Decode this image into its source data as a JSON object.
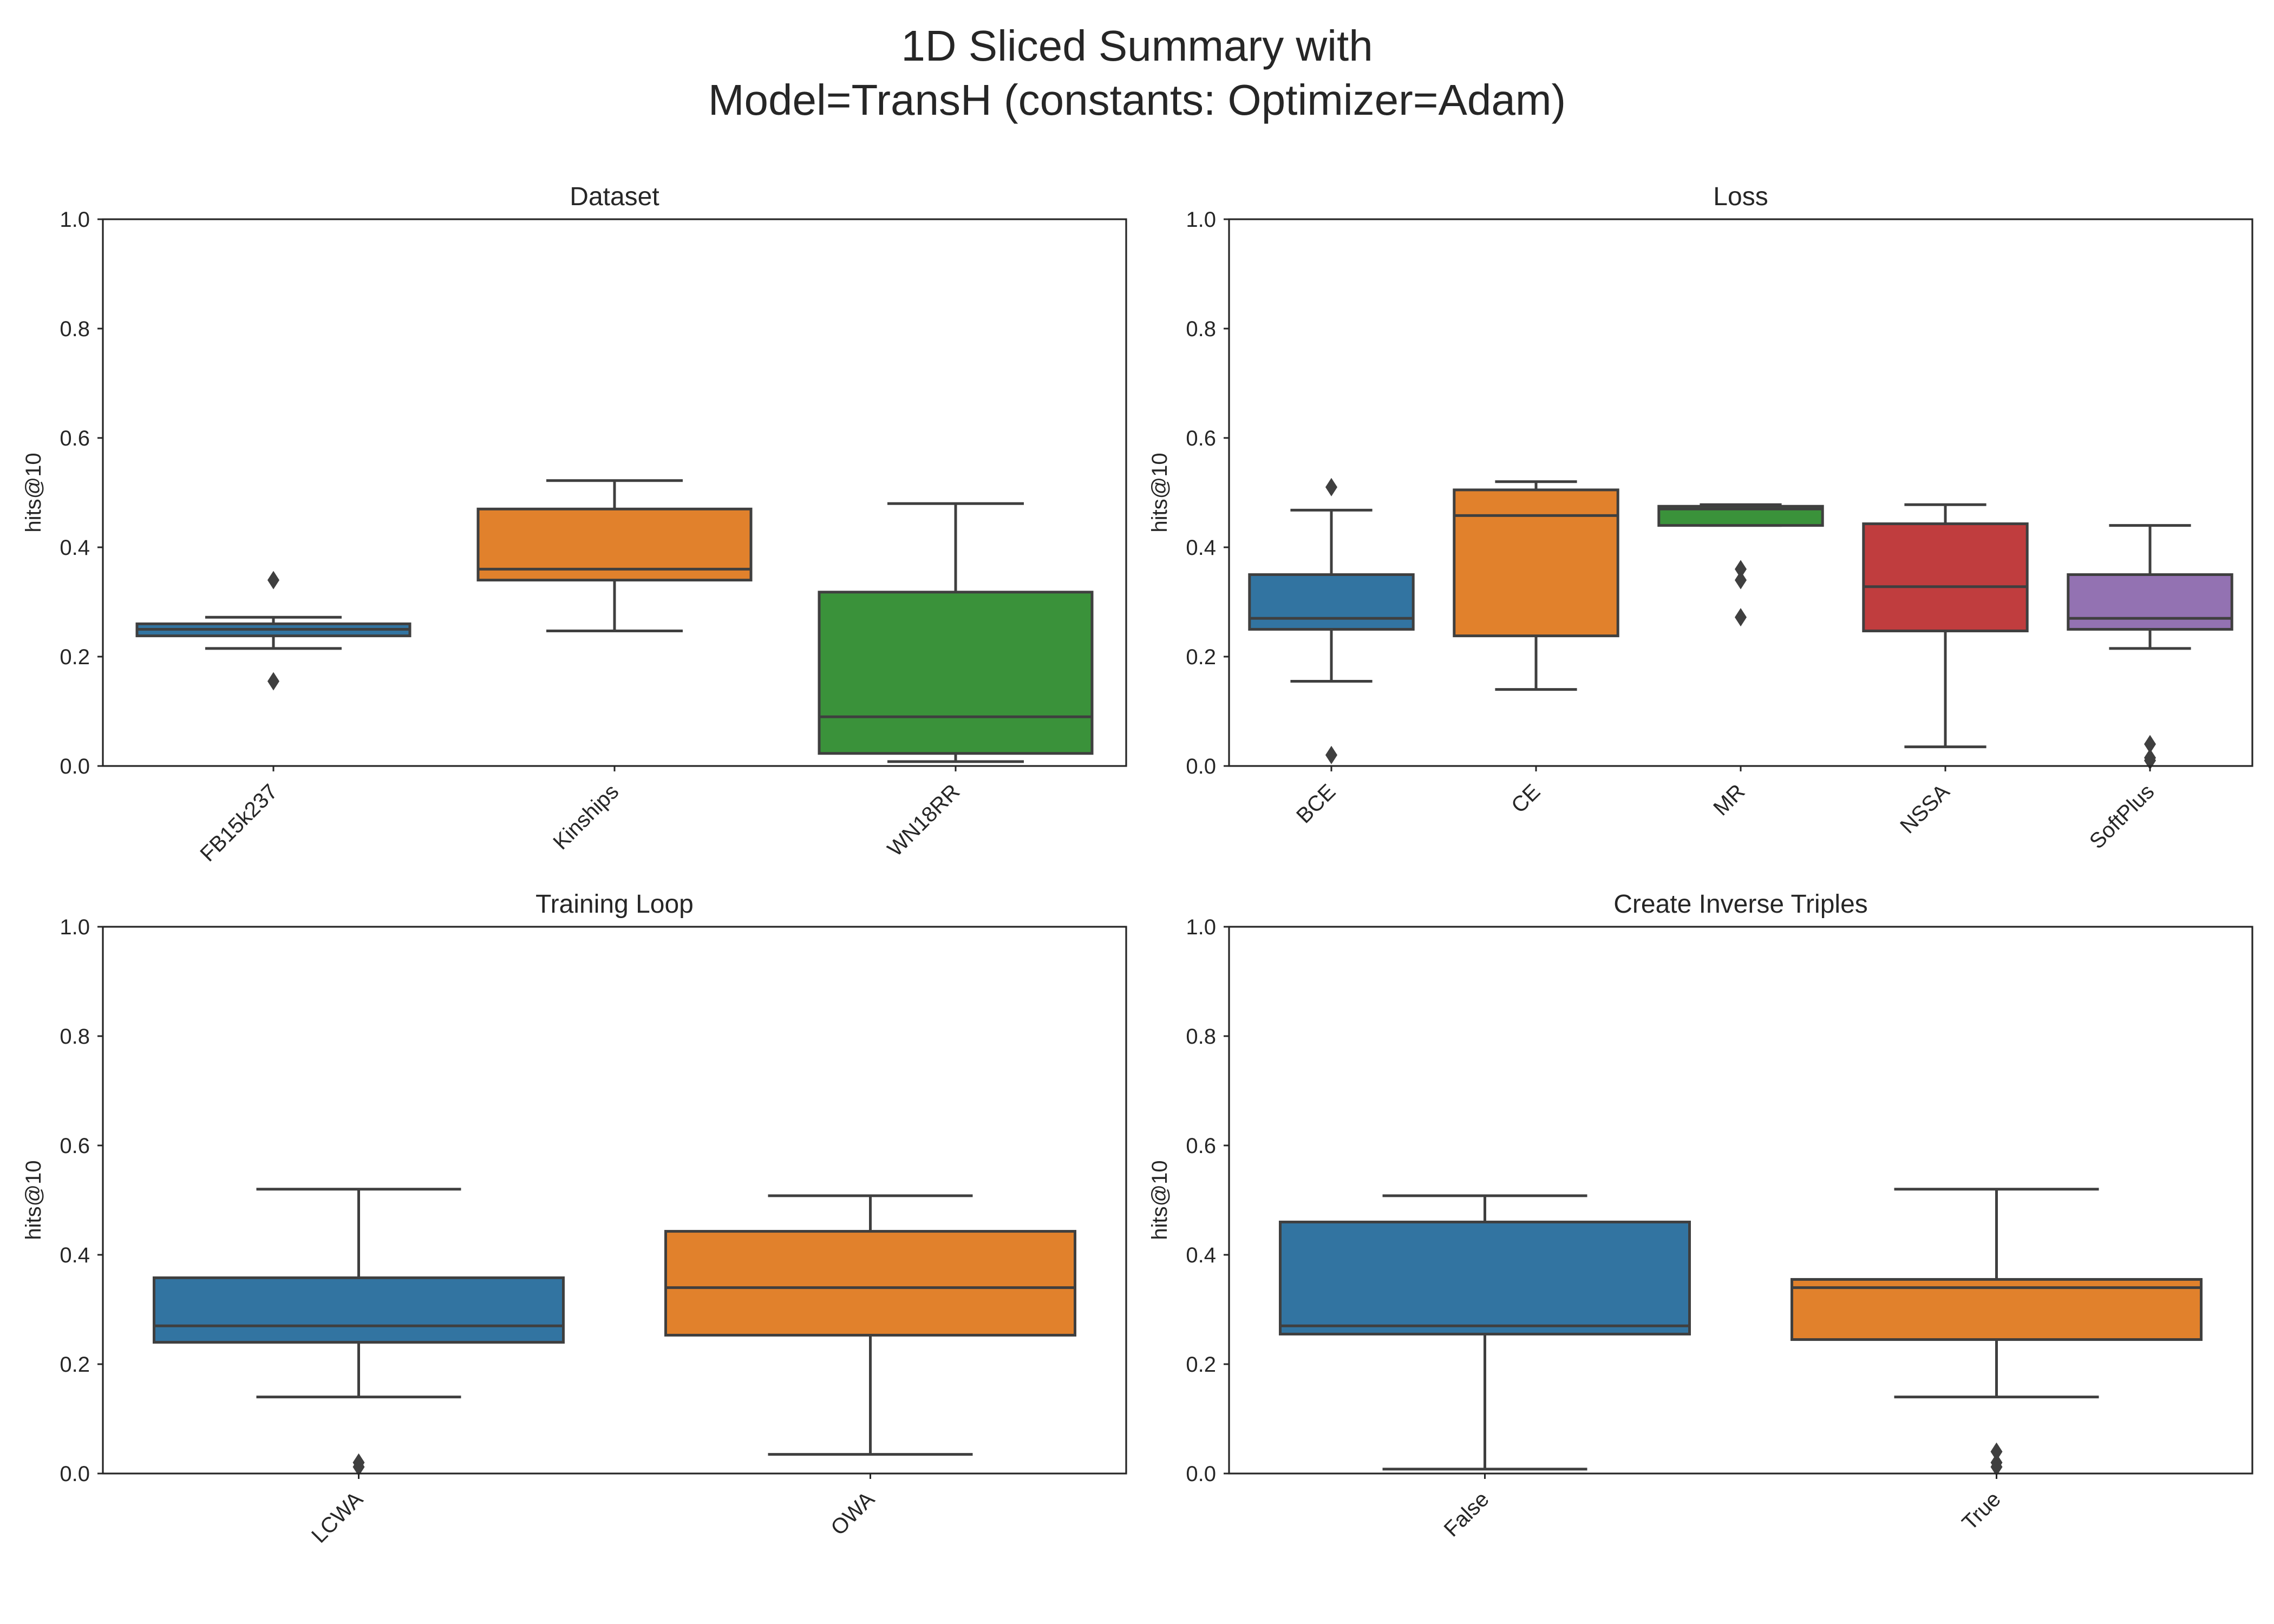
{
  "suptitle": [
    "1D Sliced Summary with",
    "Model=TransH (constants: Optimizer=Adam)"
  ],
  "chart_data": [
    {
      "type": "box",
      "title": "Dataset",
      "xlabel": "",
      "ylabel": "hits@10",
      "ylim": [
        0,
        1
      ],
      "yticks": [
        "0.0",
        "0.2",
        "0.4",
        "0.6",
        "0.8",
        "1.0"
      ],
      "grid": false,
      "categories": [
        "FB15k237",
        "Kinships",
        "WN18RR"
      ],
      "colors": [
        "#3274a1",
        "#e1812c",
        "#3a923a"
      ],
      "boxes": [
        {
          "whislo": 0.215,
          "q1": 0.238,
          "med": 0.25,
          "q3": 0.26,
          "whishi": 0.272,
          "fliers": [
            0.34,
            0.155
          ]
        },
        {
          "whislo": 0.247,
          "q1": 0.34,
          "med": 0.36,
          "q3": 0.47,
          "whishi": 0.522,
          "fliers": []
        },
        {
          "whislo": 0.008,
          "q1": 0.023,
          "med": 0.09,
          "q3": 0.318,
          "whishi": 0.48,
          "fliers": []
        }
      ]
    },
    {
      "type": "box",
      "title": "Loss",
      "xlabel": "",
      "ylabel": "hits@10",
      "ylim": [
        0,
        1
      ],
      "yticks": [
        "0.0",
        "0.2",
        "0.4",
        "0.6",
        "0.8",
        "1.0"
      ],
      "grid": false,
      "categories": [
        "BCE",
        "CE",
        "MR",
        "NSSA",
        "SoftPlus"
      ],
      "colors": [
        "#3274a1",
        "#e1812c",
        "#3a923a",
        "#c03d3e",
        "#9372b2"
      ],
      "boxes": [
        {
          "whislo": 0.155,
          "q1": 0.25,
          "med": 0.27,
          "q3": 0.35,
          "whishi": 0.468,
          "fliers": [
            0.51,
            0.02
          ]
        },
        {
          "whislo": 0.14,
          "q1": 0.238,
          "med": 0.458,
          "q3": 0.505,
          "whishi": 0.52,
          "fliers": []
        },
        {
          "whislo": 0.44,
          "q1": 0.44,
          "med": 0.47,
          "q3": 0.475,
          "whishi": 0.478,
          "fliers": [
            0.36,
            0.34,
            0.272
          ]
        },
        {
          "whislo": 0.035,
          "q1": 0.247,
          "med": 0.328,
          "q3": 0.443,
          "whishi": 0.478,
          "fliers": []
        },
        {
          "whislo": 0.215,
          "q1": 0.25,
          "med": 0.27,
          "q3": 0.35,
          "whishi": 0.44,
          "fliers": [
            0.04,
            0.015,
            0.01
          ]
        }
      ]
    },
    {
      "type": "box",
      "title": "Training Loop",
      "xlabel": "",
      "ylabel": "hits@10",
      "ylim": [
        0,
        1
      ],
      "yticks": [
        "0.0",
        "0.2",
        "0.4",
        "0.6",
        "0.8",
        "1.0"
      ],
      "grid": false,
      "categories": [
        "LCWA",
        "OWA"
      ],
      "colors": [
        "#3274a1",
        "#e1812c"
      ],
      "boxes": [
        {
          "whislo": 0.14,
          "q1": 0.24,
          "med": 0.27,
          "q3": 0.358,
          "whishi": 0.52,
          "fliers": [
            0.02,
            0.012
          ]
        },
        {
          "whislo": 0.035,
          "q1": 0.253,
          "med": 0.34,
          "q3": 0.443,
          "whishi": 0.508,
          "fliers": []
        }
      ]
    },
    {
      "type": "box",
      "title": "Create Inverse Triples",
      "xlabel": "",
      "ylabel": "hits@10",
      "ylim": [
        0,
        1
      ],
      "yticks": [
        "0.0",
        "0.2",
        "0.4",
        "0.6",
        "0.8",
        "1.0"
      ],
      "grid": false,
      "categories": [
        "False",
        "True"
      ],
      "colors": [
        "#3274a1",
        "#e1812c"
      ],
      "boxes": [
        {
          "whislo": 0.008,
          "q1": 0.255,
          "med": 0.27,
          "q3": 0.46,
          "whishi": 0.508,
          "fliers": []
        },
        {
          "whislo": 0.14,
          "q1": 0.245,
          "med": 0.34,
          "q3": 0.355,
          "whishi": 0.52,
          "fliers": [
            0.04,
            0.02,
            0.012
          ]
        }
      ]
    }
  ]
}
